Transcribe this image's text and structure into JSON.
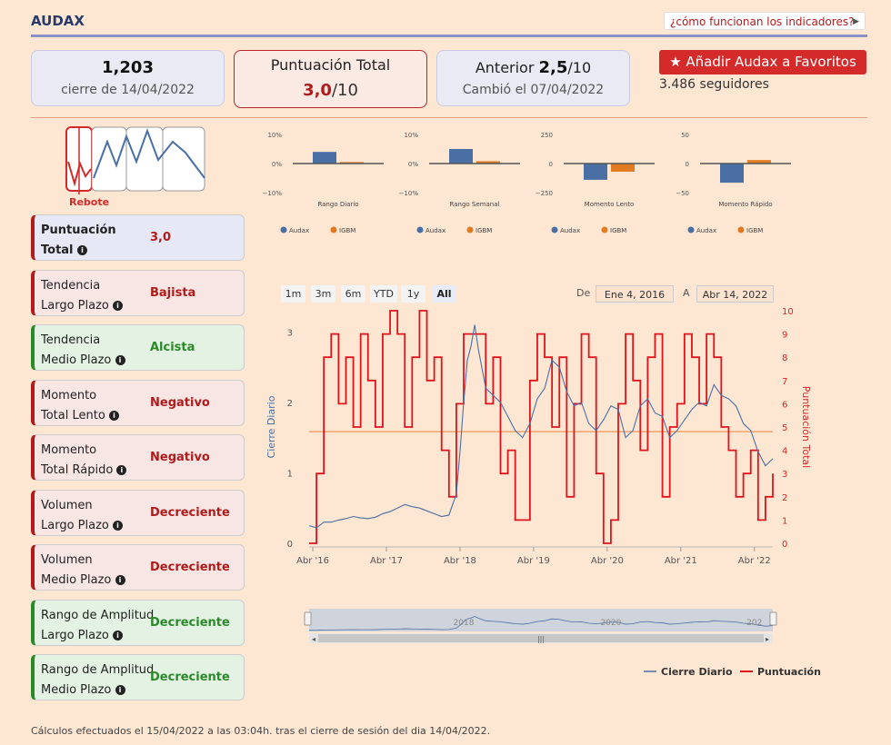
{
  "header": {
    "title": "AUDAX",
    "how_button": "¿cómo funcionan los indicadores?"
  },
  "cards": {
    "close": {
      "value": "1,203",
      "label": "cierre de 14/04/2022"
    },
    "total": {
      "label": "Puntuación Total",
      "score": "3,0",
      "max": "/10"
    },
    "previous": {
      "label": "Anterior",
      "score": "2,5",
      "max": "/10",
      "changed": "Cambió el 07/04/2022"
    }
  },
  "favorite": {
    "button": "Añadir Audax a Favoritos",
    "followers": "3.486 seguidores"
  },
  "pattern_label": "Rebote",
  "indicators": [
    {
      "line1": "Puntuación",
      "line2": "Total",
      "value": "3,0",
      "tone": "blue"
    },
    {
      "line1": "Tendencia",
      "line2": "Largo Plazo",
      "value": "Bajista",
      "tone": "red"
    },
    {
      "line1": "Tendencia",
      "line2": "Medio Plazo",
      "value": "Alcista",
      "tone": "green"
    },
    {
      "line1": "Momento",
      "line2": "Total Lento",
      "value": "Negativo",
      "tone": "red"
    },
    {
      "line1": "Momento",
      "line2": "Total Rápido",
      "value": "Negativo",
      "tone": "red"
    },
    {
      "line1": "Volumen",
      "line2": "Largo Plazo",
      "value": "Decreciente",
      "tone": "red"
    },
    {
      "line1": "Volumen",
      "line2": "Medio Plazo",
      "value": "Decreciente",
      "tone": "red"
    },
    {
      "line1": "Rango de Amplitud",
      "line2": "Largo Plazo",
      "value": "Decreciente",
      "tone": "green"
    },
    {
      "line1": "Rango de Amplitud",
      "line2": "Medio Plazo",
      "value": "Decreciente",
      "tone": "green"
    }
  ],
  "range_buttons": [
    "1m",
    "3m",
    "6m",
    "YTD",
    "1y",
    "All"
  ],
  "date_range": {
    "from_label": "De",
    "from": "Ene 4, 2016",
    "to_label": "A",
    "to": "Abr 14, 2022"
  },
  "navigator_labels": [
    "2018",
    "2020",
    "202"
  ],
  "footer": "Cálculos efectuados el 15/04/2022 a las 03:04h. tras el cierre de sesión del dia 14/04/2022.",
  "colors": {
    "audax": "#4a6fa5",
    "igbm": "#e07b22",
    "score": "#e0131c",
    "price": "#4a6fa5"
  },
  "chart_data": [
    {
      "type": "bar",
      "title": "Rango Diario",
      "categories": [
        "Audax",
        "IGBM"
      ],
      "values": [
        4,
        0.5
      ],
      "ylim": [
        -10,
        10
      ],
      "yticks": [
        "10%",
        "0%",
        "−10%"
      ]
    },
    {
      "type": "bar",
      "title": "Rango Semanal",
      "categories": [
        "Audax",
        "IGBM"
      ],
      "values": [
        5,
        0.8
      ],
      "ylim": [
        -10,
        10
      ],
      "yticks": [
        "10%",
        "0%",
        "−10%"
      ]
    },
    {
      "type": "bar",
      "title": "Momento Lento",
      "categories": [
        "Audax",
        "IGBM"
      ],
      "values": [
        -140,
        -70
      ],
      "ylim": [
        -250,
        250
      ],
      "yticks": [
        "250",
        "0",
        "−250"
      ]
    },
    {
      "type": "bar",
      "title": "Momento Rápido",
      "categories": [
        "Audax",
        "IGBM"
      ],
      "values": [
        -33,
        6
      ],
      "ylim": [
        -50,
        50
      ],
      "yticks": [
        "50",
        "0",
        "−50"
      ]
    },
    {
      "type": "line",
      "title": "",
      "xlabel": "",
      "ylabel": "Cierre Diario",
      "y2label": "Puntuación Total",
      "x_ticks": [
        "Abr '16",
        "Abr '17",
        "Abr '18",
        "Abr '19",
        "Abr '20",
        "Abr '21",
        "Abr '22"
      ],
      "y_ticks": [
        "0",
        "1",
        "2",
        "3"
      ],
      "y2_ticks": [
        "0",
        "1",
        "2",
        "3",
        "4",
        "5",
        "6",
        "7",
        "8",
        "9",
        "10"
      ],
      "ylim": [
        0,
        3.3
      ],
      "y2lim": [
        0,
        10
      ],
      "x_range": [
        2016.0,
        2022.3
      ],
      "reference_y2": 4.8,
      "legend": [
        "Cierre Diario",
        "Puntuación"
      ],
      "series": [
        {
          "name": "Cierre Diario",
          "x": [
            2016.0,
            2016.1,
            2016.2,
            2016.3,
            2016.4,
            2016.5,
            2016.6,
            2016.7,
            2016.8,
            2016.9,
            2017.0,
            2017.1,
            2017.2,
            2017.3,
            2017.4,
            2017.5,
            2017.6,
            2017.7,
            2017.8,
            2017.9,
            2018.0,
            2018.05,
            2018.1,
            2018.15,
            2018.2,
            2018.25,
            2018.3,
            2018.4,
            2018.5,
            2018.6,
            2018.7,
            2018.8,
            2018.9,
            2019.0,
            2019.1,
            2019.2,
            2019.3,
            2019.4,
            2019.5,
            2019.6,
            2019.7,
            2019.8,
            2019.9,
            2020.0,
            2020.1,
            2020.2,
            2020.3,
            2020.4,
            2020.5,
            2020.6,
            2020.7,
            2020.8,
            2020.9,
            2021.0,
            2021.1,
            2021.2,
            2021.3,
            2021.4,
            2021.5,
            2021.6,
            2021.7,
            2021.8,
            2021.9,
            2022.0,
            2022.1,
            2022.2,
            2022.3
          ],
          "values": [
            0.25,
            0.22,
            0.3,
            0.3,
            0.33,
            0.35,
            0.38,
            0.36,
            0.35,
            0.37,
            0.42,
            0.45,
            0.5,
            0.55,
            0.52,
            0.5,
            0.46,
            0.42,
            0.38,
            0.4,
            0.7,
            1.3,
            2.0,
            2.6,
            2.8,
            3.1,
            2.75,
            2.2,
            2.1,
            2.0,
            1.8,
            1.6,
            1.5,
            1.7,
            2.05,
            2.2,
            2.6,
            2.5,
            2.15,
            1.95,
            2.0,
            1.7,
            1.6,
            1.75,
            1.95,
            1.9,
            1.5,
            1.6,
            1.95,
            2.05,
            1.85,
            1.8,
            1.5,
            1.6,
            1.75,
            1.9,
            2.0,
            1.95,
            2.25,
            2.1,
            2.05,
            1.95,
            1.7,
            1.6,
            1.3,
            1.1,
            1.2
          ]
        },
        {
          "name": "Puntuación",
          "axis": "y2",
          "x": [
            2016.0,
            2016.1,
            2016.2,
            2016.3,
            2016.4,
            2016.5,
            2016.6,
            2016.7,
            2016.8,
            2016.9,
            2017.0,
            2017.1,
            2017.2,
            2017.3,
            2017.4,
            2017.5,
            2017.6,
            2017.7,
            2017.8,
            2017.9,
            2018.0,
            2018.1,
            2018.2,
            2018.3,
            2018.4,
            2018.5,
            2018.6,
            2018.7,
            2018.8,
            2018.9,
            2019.0,
            2019.1,
            2019.2,
            2019.3,
            2019.4,
            2019.5,
            2019.6,
            2019.7,
            2019.8,
            2019.9,
            2020.0,
            2020.1,
            2020.2,
            2020.3,
            2020.4,
            2020.5,
            2020.6,
            2020.7,
            2020.8,
            2020.9,
            2021.0,
            2021.1,
            2021.2,
            2021.3,
            2021.4,
            2021.5,
            2021.6,
            2021.7,
            2021.8,
            2021.9,
            2022.0,
            2022.1,
            2022.2,
            2022.3
          ],
          "values": [
            0,
            3,
            8,
            9,
            6,
            8,
            5,
            9,
            7,
            5,
            9,
            10,
            9,
            5,
            8,
            10,
            7,
            8,
            4,
            2,
            6,
            9,
            9,
            9,
            6,
            8,
            3,
            4,
            1,
            1,
            7,
            9,
            8,
            5,
            8,
            2,
            6,
            9,
            8,
            3,
            0,
            1,
            6,
            9,
            7,
            4,
            8,
            9,
            2,
            5,
            6,
            9,
            8,
            6,
            9,
            8,
            5,
            4,
            2,
            3,
            4,
            1,
            2,
            3
          ]
        }
      ]
    }
  ]
}
